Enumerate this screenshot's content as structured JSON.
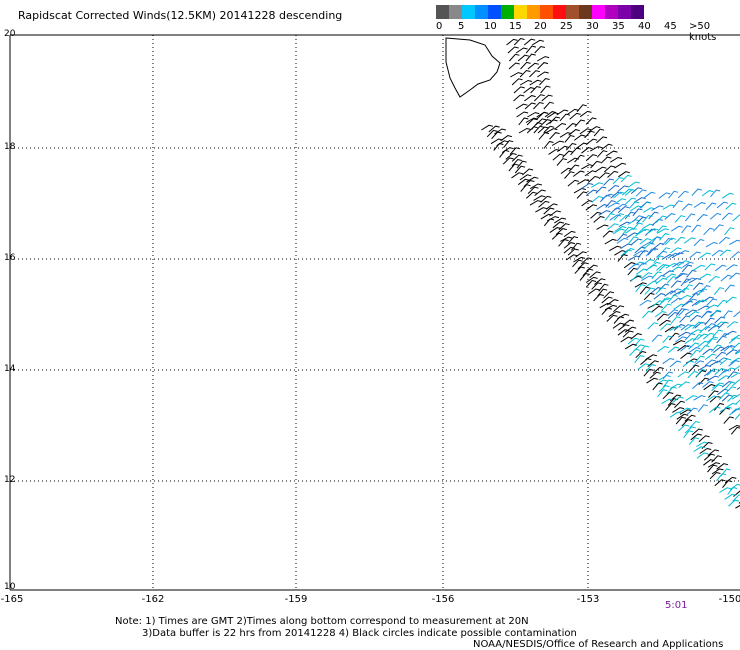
{
  "title": "Rapidscat Corrected Winds(12.5KM) 20141228 descending",
  "legend": {
    "colors": [
      "#555555",
      "#888888",
      "#00c8ff",
      "#0090ff",
      "#0050ff",
      "#00b000",
      "#ffd700",
      "#ff9a00",
      "#ff5000",
      "#ff1010",
      "#a0502d",
      "#6b3a1e",
      "#ff00ff",
      "#b000c0",
      "#7b00a8",
      "#4b0080"
    ],
    "labels": [
      "0",
      "5",
      "10",
      "15",
      "20",
      "25",
      "30",
      "35",
      "40",
      "45",
      ">50 knots"
    ]
  },
  "axes": {
    "y_ticks": [
      "20",
      "18",
      "16",
      "14",
      "12",
      "10"
    ],
    "x_ticks": [
      "-165",
      "-162",
      "-159",
      "-156",
      "-153",
      "-150"
    ]
  },
  "time_label": "5:01",
  "notes": {
    "line1": "Note: 1) Times are GMT 2)Times along bottom correspond to measurement at 20N",
    "line2": "3)Data buffer is 22 hrs from 20141228 4) Black circles indicate possible contamination"
  },
  "credit": "NOAA/NESDIS/Office of Research and Applications",
  "map": {
    "lon_range": [
      -165,
      -150
    ],
    "lat_range": [
      10,
      20
    ],
    "grid": "dotted"
  }
}
